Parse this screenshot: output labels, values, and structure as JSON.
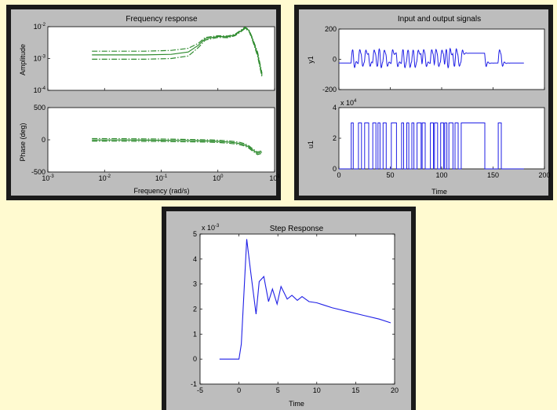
{
  "colors": {
    "page_bg": "#fffad0",
    "frame": "#1a1a1a",
    "figure_bg": "#bdbdbd",
    "axes_bg": "#ffffff",
    "freq_line": "#2e8b2e",
    "signal_line": "#1f1fe6"
  },
  "chart_data": [
    {
      "id": "frequency-response",
      "type": "line",
      "title": "Frequency response",
      "xlabel": "Frequency (rad/s)",
      "xscale": "log",
      "xlim": [
        0.001,
        10
      ],
      "xticks": [
        "10^-3",
        "10^-2",
        "10^-1",
        "10^0",
        "10^1"
      ],
      "subplots": [
        {
          "ylabel": "Amplitude",
          "yscale": "log",
          "ylim": [
            0.0001,
            0.01
          ],
          "yticks": [
            "10^-2",
            "10^-3",
            "10^-4"
          ],
          "x": [
            0.006,
            0.05,
            0.15,
            0.3,
            0.45,
            0.6,
            1.0,
            1.5,
            2.0,
            2.5,
            3.0,
            3.5,
            4.0,
            5.0,
            6.0
          ],
          "series": [
            {
              "style": "solid",
              "values": [
                0.0013,
                0.0013,
                0.00135,
                0.0016,
                0.0026,
                0.0042,
                0.0049,
                0.0048,
                0.0055,
                0.0072,
                0.0092,
                0.0078,
                0.0045,
                0.0014,
                0.0003
              ]
            },
            {
              "style": "dash-dot",
              "values": [
                0.0017,
                0.0017,
                0.0018,
                0.0021,
                0.003,
                0.0046,
                0.0052,
                0.0051,
                0.0058,
                0.0076,
                0.0097,
                0.0082,
                0.0048,
                0.0016,
                0.00034
              ]
            },
            {
              "style": "dash-dot",
              "values": [
                0.00095,
                0.00095,
                0.001,
                0.0012,
                0.0022,
                0.0038,
                0.0046,
                0.0045,
                0.0052,
                0.0068,
                0.0087,
                0.0074,
                0.0042,
                0.0012,
                0.00026
              ]
            }
          ]
        },
        {
          "ylabel": "Phase (deg)",
          "ylim": [
            -500,
            500
          ],
          "yticks": [
            "500",
            "0",
            "-500"
          ],
          "x": [
            0.006,
            0.02,
            0.05,
            0.1,
            0.2,
            0.4,
            0.7,
            1.0,
            1.5,
            2.0,
            2.5,
            3.0,
            3.5,
            4.0,
            5.0,
            6.0
          ],
          "series": [
            {
              "style": "solid",
              "values": [
                -2,
                -3,
                -5,
                -7,
                -10,
                -14,
                -18,
                -24,
                -34,
                -46,
                -60,
                -80,
                -110,
                -150,
                -210,
                -190
              ]
            },
            {
              "style": "dash-dot",
              "values": [
                18,
                17,
                15,
                12,
                8,
                4,
                0,
                -6,
                -16,
                -28,
                -42,
                -62,
                -92,
                -132,
                -190,
                -170
              ]
            },
            {
              "style": "dash-dot",
              "values": [
                -20,
                -21,
                -24,
                -26,
                -29,
                -32,
                -36,
                -42,
                -52,
                -64,
                -78,
                -98,
                -128,
                -168,
                -230,
                -210
              ]
            }
          ]
        }
      ]
    },
    {
      "id": "input-output-signals",
      "type": "line",
      "title": "Input and output signals",
      "xlabel": "Time",
      "xlim": [
        0,
        200
      ],
      "xticks": [
        "0",
        "50",
        "100",
        "150",
        "200"
      ],
      "subplots": [
        {
          "ylabel": "y1",
          "ylim": [
            -200,
            200
          ],
          "yticks": [
            "200",
            "0",
            "-200"
          ]
        },
        {
          "ylabel": "u1",
          "ylim": [
            0,
            40000
          ],
          "yticks": [
            "4",
            "2",
            "0"
          ],
          "exponent_label": "x 10^4",
          "pulses": [
            [
              12,
              14
            ],
            [
              19,
              22
            ],
            [
              25,
              29
            ],
            [
              33,
              36
            ],
            [
              38,
              40
            ],
            [
              43,
              46
            ],
            [
              51,
              56
            ],
            [
              61,
              63
            ],
            [
              66,
              68
            ],
            [
              71,
              73
            ],
            [
              76,
              80
            ],
            [
              81,
              84
            ],
            [
              89,
              92
            ],
            [
              93,
              96
            ],
            [
              99,
              102
            ],
            [
              103,
              105
            ],
            [
              107,
              111
            ],
            [
              113,
              116
            ],
            [
              119,
              142
            ],
            [
              155,
              158
            ]
          ],
          "pulse_level": 30000
        }
      ]
    },
    {
      "id": "step-response",
      "type": "line",
      "title": "Step Response",
      "xlabel": "Time",
      "ylabel": "",
      "xlim": [
        -5,
        20
      ],
      "ylim": [
        -1,
        5
      ],
      "xticks": [
        "-5",
        "0",
        "5",
        "10",
        "15",
        "20"
      ],
      "yticks": [
        "5",
        "4",
        "3",
        "2",
        "1",
        "0",
        "-1"
      ],
      "exponent_label": "x 10^-3",
      "units_scale": 0.001,
      "x": [
        -2.5,
        0,
        0.3,
        1.0,
        1.5,
        2.2,
        2.6,
        3.2,
        3.8,
        4.3,
        4.9,
        5.4,
        6.2,
        6.8,
        7.5,
        8.1,
        9.0,
        10,
        11,
        12,
        14,
        16,
        18,
        19.5
      ],
      "values": [
        0,
        0,
        0.6,
        4.8,
        3.5,
        1.8,
        3.1,
        3.3,
        2.3,
        2.8,
        2.2,
        2.9,
        2.4,
        2.55,
        2.35,
        2.5,
        2.3,
        2.25,
        2.15,
        2.05,
        1.9,
        1.75,
        1.6,
        1.45
      ]
    }
  ]
}
